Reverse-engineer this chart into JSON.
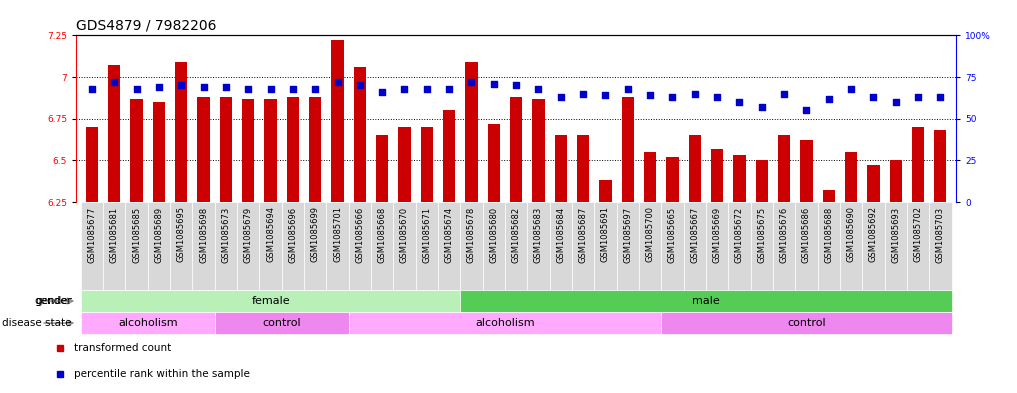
{
  "title": "GDS4879 / 7982206",
  "samples": [
    "GSM1085677",
    "GSM1085681",
    "GSM1085685",
    "GSM1085689",
    "GSM1085695",
    "GSM1085698",
    "GSM1085673",
    "GSM1085679",
    "GSM1085694",
    "GSM1085696",
    "GSM1085699",
    "GSM1085701",
    "GSM1085666",
    "GSM1085668",
    "GSM1085670",
    "GSM1085671",
    "GSM1085674",
    "GSM1085678",
    "GSM1085680",
    "GSM1085682",
    "GSM1085683",
    "GSM1085684",
    "GSM1085687",
    "GSM1085691",
    "GSM1085697",
    "GSM1085700",
    "GSM1085665",
    "GSM1085667",
    "GSM1085669",
    "GSM1085672",
    "GSM1085675",
    "GSM1085676",
    "GSM1085686",
    "GSM1085688",
    "GSM1085690",
    "GSM1085692",
    "GSM1085693",
    "GSM1085702",
    "GSM1085703"
  ],
  "bar_values": [
    6.7,
    7.07,
    6.87,
    6.85,
    7.09,
    6.88,
    6.88,
    6.87,
    6.87,
    6.88,
    6.88,
    7.22,
    7.06,
    6.65,
    6.7,
    6.7,
    6.8,
    7.09,
    6.72,
    6.88,
    6.87,
    6.65,
    6.65,
    6.38,
    6.88,
    6.55,
    6.52,
    6.65,
    6.57,
    6.53,
    6.5,
    6.65,
    6.62,
    6.32,
    6.55,
    6.47,
    6.5,
    6.7,
    6.68
  ],
  "percentile_values": [
    68,
    72,
    68,
    69,
    70,
    69,
    69,
    68,
    68,
    68,
    68,
    72,
    70,
    66,
    68,
    68,
    68,
    72,
    71,
    70,
    68,
    63,
    65,
    64,
    68,
    64,
    63,
    65,
    63,
    60,
    57,
    65,
    55,
    62,
    68,
    63,
    60,
    63,
    63
  ],
  "ylim_left": [
    6.25,
    7.25
  ],
  "ylim_right": [
    0,
    100
  ],
  "bar_color": "#cc0000",
  "dot_color": "#0000cc",
  "bar_bottom": 6.25,
  "gender_bands": [
    {
      "label": "female",
      "start": 0,
      "end": 17,
      "color": "#b8f0b8"
    },
    {
      "label": "male",
      "start": 17,
      "end": 39,
      "color": "#55cc55"
    }
  ],
  "disease_bands": [
    {
      "label": "alcoholism",
      "start": 0,
      "end": 6,
      "color": "#ffaaff"
    },
    {
      "label": "control",
      "start": 6,
      "end": 12,
      "color": "#ee88ee"
    },
    {
      "label": "alcoholism",
      "start": 12,
      "end": 26,
      "color": "#ffaaff"
    },
    {
      "label": "control",
      "start": 26,
      "end": 39,
      "color": "#ee88ee"
    }
  ],
  "yticks_left": [
    6.25,
    6.5,
    6.75,
    7.0,
    7.25
  ],
  "ytick_labels_left": [
    "6.25",
    "6.5",
    "6.75",
    "7",
    "7.25"
  ],
  "yticks_right": [
    0,
    25,
    50,
    75,
    100
  ],
  "ytick_labels_right": [
    "0",
    "25",
    "50",
    "75",
    "100%"
  ],
  "grid_values": [
    6.5,
    6.75,
    7.0
  ],
  "sample_bg_color": "#d8d8d8",
  "legend_items": [
    {
      "label": "transformed count",
      "color": "#cc0000"
    },
    {
      "label": "percentile rank within the sample",
      "color": "#0000cc"
    }
  ],
  "title_fontsize": 10,
  "tick_fontsize": 6.5,
  "sample_fontsize": 6,
  "label_fontsize": 7.5,
  "band_fontsize": 8,
  "arrow_color": "#888888"
}
